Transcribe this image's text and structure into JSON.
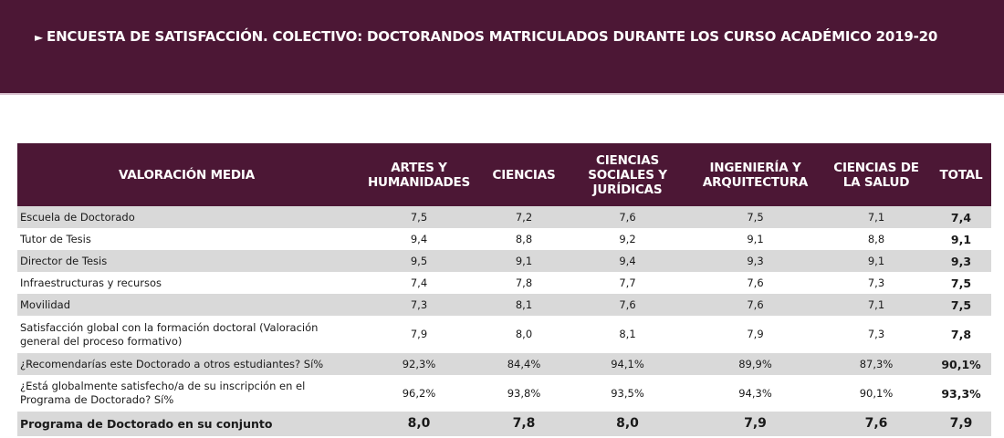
{
  "banner": {
    "arrow": "►",
    "title": "ENCUESTA DE SATISFACCIÓN. COLECTIVO: DOCTORANDOS MATRICULADOS DURANTE LOS CURSO ACADÉMICO 2019-20"
  },
  "colors": {
    "brand": "#4c1735",
    "row_shade": "#d9d9d9"
  },
  "table": {
    "headers": {
      "label": "VALORACIÓN MEDIA",
      "artes_1": "ARTES Y",
      "artes_2": "HUMANIDADES",
      "ciencias": "CIENCIAS",
      "ccss_1": "CIENCIAS",
      "ccss_2": "SOCIALES Y",
      "ccss_3": "JURÍDICAS",
      "ing_1": "INGENIERÍA Y",
      "ing_2": "ARQUITECTURA",
      "salud_1": "CIENCIAS DE",
      "salud_2": "LA SALUD",
      "total": "TOTAL"
    },
    "rows": [
      {
        "label": "Escuela de Doctorado",
        "artes": "7,5",
        "ciencias": "7,2",
        "ccss": "7,6",
        "ing": "7,5",
        "salud": "7,1",
        "total": "7,4"
      },
      {
        "label": "Tutor de Tesis",
        "artes": "9,4",
        "ciencias": "8,8",
        "ccss": "9,2",
        "ing": "9,1",
        "salud": "8,8",
        "total": "9,1"
      },
      {
        "label": "Director de Tesis",
        "artes": "9,5",
        "ciencias": "9,1",
        "ccss": "9,4",
        "ing": "9,3",
        "salud": "9,1",
        "total": "9,3"
      },
      {
        "label": "Infraestructuras y recursos",
        "artes": "7,4",
        "ciencias": "7,8",
        "ccss": "7,7",
        "ing": "7,6",
        "salud": "7,3",
        "total": "7,5"
      },
      {
        "label": "Movilidad",
        "artes": "7,3",
        "ciencias": "8,1",
        "ccss": "7,6",
        "ing": "7,6",
        "salud": "7,1",
        "total": "7,5"
      },
      {
        "label": "Satisfacción global con la formación doctoral (Valoración general del proceso formativo)",
        "artes": "7,9",
        "ciencias": "8,0",
        "ccss": "8,1",
        "ing": "7,9",
        "salud": "7,3",
        "total": "7,8"
      },
      {
        "label": "¿Recomendarías este Doctorado a otros estudiantes? Sí%",
        "artes": "92,3%",
        "ciencias": "84,4%",
        "ccss": "94,1%",
        "ing": "89,9%",
        "salud": "87,3%",
        "total": "90,1%"
      },
      {
        "label": "¿Está globalmente satisfecho/a de su inscripción en el Programa de Doctorado? Sí%",
        "artes": "96,2%",
        "ciencias": "93,8%",
        "ccss": "93,5%",
        "ing": "94,3%",
        "salud": "90,1%",
        "total": "93,3%"
      },
      {
        "label": "Programa de Doctorado en su conjunto",
        "artes": "8,0",
        "ciencias": "7,8",
        "ccss": "8,0",
        "ing": "7,9",
        "salud": "7,6",
        "total": "7,9"
      }
    ]
  }
}
